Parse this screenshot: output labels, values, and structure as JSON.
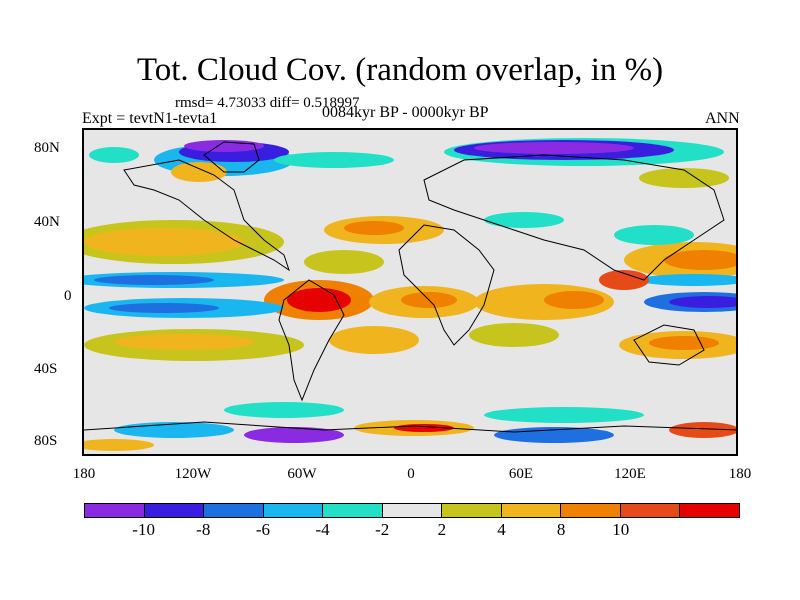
{
  "title": "Tot. Cloud Cov. (random overlap, in %)",
  "stats": "rmsd= 4.73033 diff= 0.518997",
  "experiment": "Expt = tevtN1-tevta1",
  "period": "0084kyr BP - 0000kyr BP",
  "season": "ANN",
  "y_ticks": [
    "80N",
    "40N",
    "0",
    "40S",
    "80S"
  ],
  "x_ticks": [
    "180",
    "120W",
    "60W",
    "0",
    "60E",
    "120E",
    "180"
  ],
  "colorbar": {
    "labels": [
      "-10",
      "-8",
      "-6",
      "-4",
      "-2",
      "2",
      "4",
      "8",
      "10"
    ],
    "colors": [
      "#8a2be2",
      "#3a1ee0",
      "#1e6fe0",
      "#19b6f0",
      "#22e0c8",
      "#e6e6e6",
      "#c8c41e",
      "#f0b41e",
      "#f08000",
      "#e64a19",
      "#e60000"
    ]
  },
  "chart_data": {
    "type": "heatmap",
    "title": "Tot. Cloud Cov. (random overlap, in %)",
    "x_range": [
      -180,
      180
    ],
    "y_range": [
      -90,
      90
    ],
    "x_tick_values": [
      -180,
      -120,
      -60,
      0,
      60,
      120,
      180
    ],
    "y_tick_values": [
      80,
      40,
      0,
      -40,
      -80
    ],
    "contour_levels": [
      -10,
      -8,
      -6,
      -4,
      -2,
      2,
      4,
      8,
      10
    ],
    "rmsd": 4.73033,
    "diff": 0.518997
  }
}
